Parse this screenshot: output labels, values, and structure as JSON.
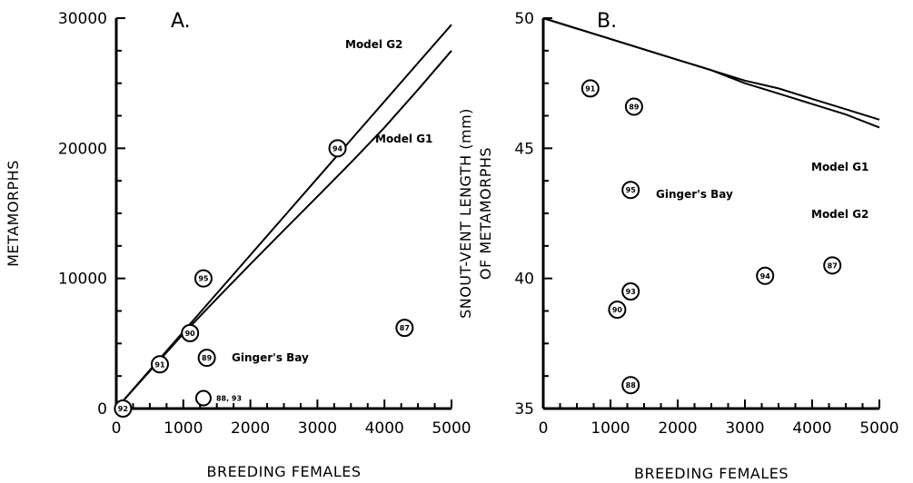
{
  "chart_data": [
    {
      "type": "scatter",
      "panel_label": "A.",
      "xlabel": "BREEDING FEMALES",
      "ylabel": "METAMORPHS",
      "xlim": [
        0,
        5000
      ],
      "ylim": [
        0,
        30000
      ],
      "x_ticks": [
        "0",
        "1000",
        "2000",
        "3000",
        "4000",
        "5000"
      ],
      "y_ticks": [
        "0",
        "10000",
        "20000",
        "30000"
      ],
      "annotation": "Ginger's Bay",
      "points": [
        {
          "label": "92",
          "x": 100,
          "y": 0
        },
        {
          "label": "91",
          "x": 650,
          "y": 3400
        },
        {
          "label": "90",
          "x": 1100,
          "y": 5800
        },
        {
          "label": "95",
          "x": 1300,
          "y": 10000
        },
        {
          "label": "89",
          "x": 1350,
          "y": 3900
        },
        {
          "label": "88, 93",
          "x": 1300,
          "y": 800,
          "label_outside": true
        },
        {
          "label": "94",
          "x": 3300,
          "y": 20000
        },
        {
          "label": "87",
          "x": 4300,
          "y": 6200
        }
      ],
      "series": [
        {
          "name": "Model G2",
          "x": [
            0,
            500,
            1000,
            1500,
            2000,
            2500,
            3000,
            3500,
            4000,
            4500,
            5000
          ],
          "y": [
            0,
            2950,
            5900,
            8850,
            11800,
            14750,
            17700,
            20650,
            23600,
            26550,
            29500
          ]
        },
        {
          "name": "Model G1",
          "x": [
            0,
            500,
            1000,
            1500,
            2000,
            2500,
            3000,
            3500,
            4000,
            4500,
            5000
          ],
          "y": [
            0,
            2880,
            5750,
            8450,
            11100,
            13700,
            16300,
            18900,
            21600,
            24500,
            27500
          ]
        }
      ]
    },
    {
      "type": "scatter",
      "panel_label": "B.",
      "xlabel": "BREEDING FEMALES",
      "ylabel": "SNOUT-VENT LENGTH (mm) OF METAMORPHS",
      "ylabel_lines": [
        "SNOUT-VENT LENGTH (mm)",
        "OF METAMORPHS"
      ],
      "xlim": [
        0,
        5000
      ],
      "ylim": [
        35,
        50
      ],
      "x_ticks": [
        "0",
        "1000",
        "2000",
        "3000",
        "4000",
        "5000"
      ],
      "y_ticks": [
        "35",
        "40",
        "45",
        "50"
      ],
      "annotation": "Ginger's Bay",
      "points": [
        {
          "label": "91",
          "x": 700,
          "y": 47.3
        },
        {
          "label": "89",
          "x": 1350,
          "y": 46.6
        },
        {
          "label": "95",
          "x": 1300,
          "y": 43.4
        },
        {
          "label": "93",
          "x": 1300,
          "y": 39.5
        },
        {
          "label": "90",
          "x": 1100,
          "y": 38.8
        },
        {
          "label": "88",
          "x": 1300,
          "y": 35.9
        },
        {
          "label": "94",
          "x": 3300,
          "y": 40.1
        },
        {
          "label": "87",
          "x": 4300,
          "y": 40.5
        }
      ],
      "series": [
        {
          "name": "Model G1",
          "x": [
            0,
            500,
            1000,
            1500,
            2000,
            2500,
            3000,
            3500,
            4000,
            4500,
            5000
          ],
          "y": [
            50,
            49.6,
            49.2,
            48.8,
            48.4,
            48.0,
            47.6,
            47.3,
            46.9,
            46.5,
            46.1
          ]
        },
        {
          "name": "Model G2",
          "x": [
            0,
            500,
            1000,
            1500,
            2000,
            2500,
            3000,
            3500,
            4000,
            4500,
            5000
          ],
          "y": [
            50,
            49.6,
            49.2,
            48.8,
            48.4,
            48.0,
            47.5,
            47.1,
            46.7,
            46.3,
            45.8
          ]
        }
      ]
    }
  ]
}
